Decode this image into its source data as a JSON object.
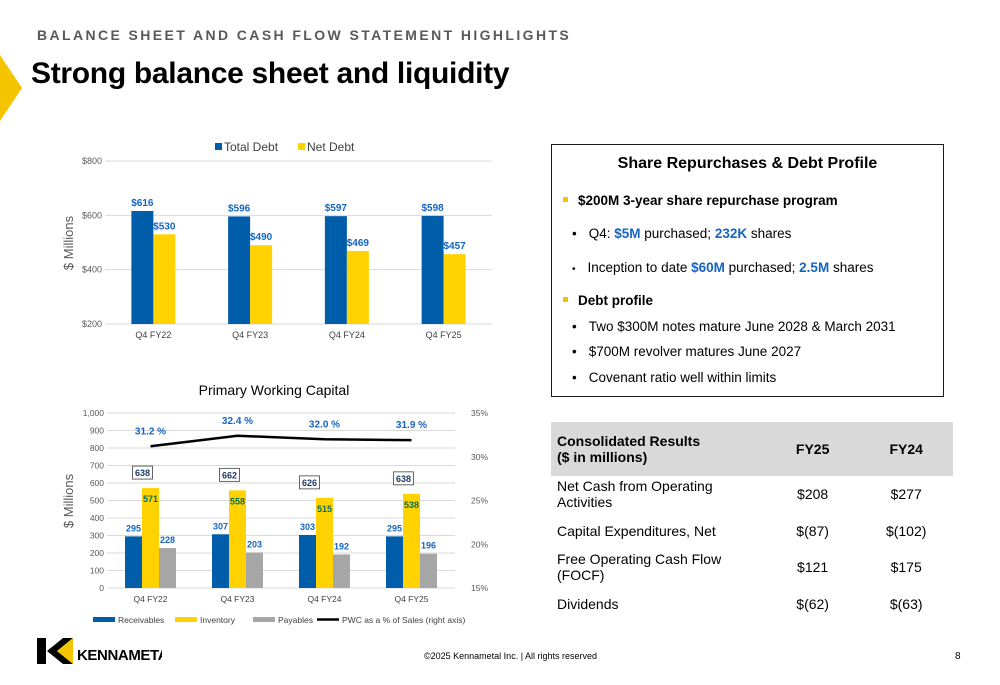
{
  "header": {
    "eyebrow": "BALANCE SHEET AND CASH FLOW STATEMENT HIGHLIGHTS",
    "title": "Strong balance sheet and liquidity"
  },
  "colors": {
    "blue": "#005DAA",
    "yellow": "#FFD200",
    "gray": "#A6A6A6",
    "label_blue": "#1565C0",
    "accent": "#F5C400"
  },
  "chart_data": [
    {
      "type": "bar",
      "categories": [
        "Q4 FY22",
        "Q4 FY23",
        "Q4 FY24",
        "Q4 FY25"
      ],
      "series": [
        {
          "name": "Total Debt",
          "values": [
            616,
            596,
            597,
            598
          ],
          "labels": [
            "$616",
            "$596",
            "$597",
            "$598"
          ]
        },
        {
          "name": "Net Debt",
          "values": [
            530,
            490,
            469,
            457
          ],
          "labels": [
            "$530",
            "$490",
            "$469",
            "$457"
          ]
        }
      ],
      "ylabel": "$ Millions",
      "ylim": [
        200,
        800
      ],
      "yticks": [
        "$200",
        "$400",
        "$600",
        "$800"
      ],
      "legend": "top"
    },
    {
      "type": "bar",
      "title": "Primary Working Capital",
      "categories": [
        "Q4 FY22",
        "Q4 FY23",
        "Q4 FY24",
        "Q4 FY25"
      ],
      "series": [
        {
          "name": "Receivables",
          "values": [
            295,
            307,
            303,
            295
          ]
        },
        {
          "name": "Inventory",
          "values": [
            571,
            558,
            515,
            538
          ]
        },
        {
          "name": "Payables",
          "values": [
            228,
            203,
            192,
            196
          ]
        },
        {
          "name": "PWC as a % of Sales (right axis)",
          "type": "line",
          "values": [
            31.2,
            32.4,
            32.0,
            31.9
          ],
          "labels": [
            "31.2 %",
            "32.4 %",
            "32.0 %",
            "31.9 %"
          ]
        }
      ],
      "pwc_totals": [
        638,
        662,
        626,
        638
      ],
      "ylabel": "$ Millions",
      "ylim": [
        0,
        1000
      ],
      "yticks": [
        "0",
        "100",
        "200",
        "300",
        "400",
        "500",
        "600",
        "700",
        "800",
        "900",
        "1,000"
      ],
      "y2lim": [
        15,
        35
      ],
      "y2ticks": [
        "15%",
        "20%",
        "25%",
        "30%",
        "35%"
      ],
      "legend": "bottom"
    }
  ],
  "panel": {
    "title": "Share Repurchases & Debt Profile",
    "program": "$200M 3-year share repurchase program",
    "q4_prefix": "Q4: ",
    "q4_amount": "$5M",
    "q4_mid": " purchased; ",
    "q4_shares": "232K",
    "q4_suffix": " shares",
    "itd_prefix": "Inception to date ",
    "itd_amount": "$60M",
    "itd_mid": " purchased; ",
    "itd_shares": "2.5M",
    "itd_suffix": " shares",
    "debt_heading": "Debt profile",
    "debt_items": [
      "Two $300M notes mature June 2028 & March 2031",
      "$700M revolver matures June 2027",
      "Covenant ratio well within limits"
    ]
  },
  "table": {
    "header_line1": "Consolidated Results",
    "header_line2": "($ in millions)",
    "col1": "FY25",
    "col2": "FY24",
    "rows": [
      {
        "label": "Net Cash from Operating Activities",
        "fy25": "$208",
        "fy24": "$277"
      },
      {
        "label": "Capital Expenditures, Net",
        "fy25": "$(87)",
        "fy24": "$(102)"
      },
      {
        "label": "Free Operating Cash Flow  (FOCF)",
        "fy25": "$121",
        "fy24": "$175"
      },
      {
        "label": "Dividends",
        "fy25": "$(62)",
        "fy24": "$(63)"
      }
    ]
  },
  "footer": {
    "copyright": "©2025 Kennametal Inc.  |  All rights reserved",
    "page": "8",
    "logo_text": "KENNAMETAL"
  }
}
